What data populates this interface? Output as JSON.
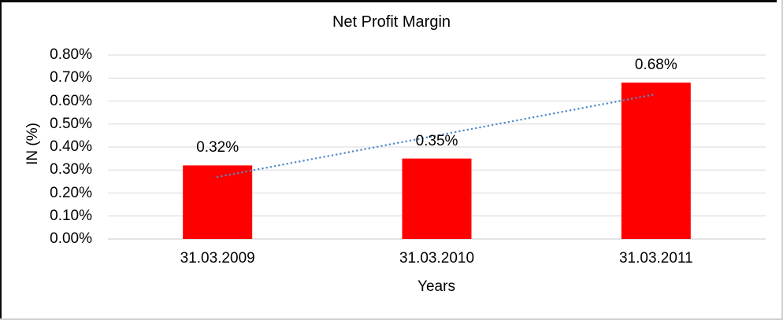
{
  "frame": {
    "background": "#ffffff",
    "border_dark": "#0a0a0a",
    "border_light": "#cfcfcf"
  },
  "chart_data": {
    "type": "bar",
    "title": "Net Profit Margin",
    "xlabel": "Years",
    "ylabel": "IN (%)",
    "categories": [
      "31.03.2009",
      "31.03.2010",
      "31.03.2011"
    ],
    "values": [
      0.32,
      0.35,
      0.68
    ],
    "data_labels": [
      "0.32%",
      "0.35%",
      "0.68%"
    ],
    "ylim": [
      0,
      0.8
    ],
    "ytick_step": 0.1,
    "ytick_labels": [
      "0.00%",
      "0.10%",
      "0.20%",
      "0.30%",
      "0.40%",
      "0.50%",
      "0.60%",
      "0.70%",
      "0.80%"
    ],
    "grid": true,
    "legend": "none",
    "bar_color": "#ff0000",
    "gridline_color": "#d9d9d9",
    "axis_line_color": "#c9c9c9",
    "text_color": "#000000",
    "trendline": {
      "shape": "linear",
      "line_style": "dotted",
      "color": "#4e8bc8",
      "start_value": 0.27,
      "end_value": 0.63
    }
  }
}
